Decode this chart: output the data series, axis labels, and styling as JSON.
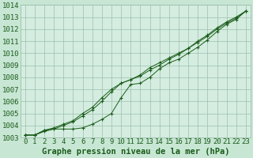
{
  "title": "Graphe pression niveau de la mer (hPa)",
  "background_color": "#c8e6d4",
  "plot_bg_color": "#d4ede0",
  "grid_color": "#9dbfac",
  "line_color": "#1a5c1a",
  "marker_color": "#1a5c1a",
  "x_values": [
    0,
    1,
    2,
    3,
    4,
    5,
    6,
    7,
    8,
    9,
    10,
    11,
    12,
    13,
    14,
    15,
    16,
    17,
    18,
    19,
    20,
    21,
    22,
    23
  ],
  "series1": [
    1003.2,
    1003.2,
    1003.5,
    1003.7,
    1003.7,
    1003.7,
    1003.8,
    1004.1,
    1004.5,
    1005.0,
    1006.3,
    1007.4,
    1007.5,
    1008.0,
    1008.7,
    1009.2,
    1009.5,
    1010.0,
    1010.5,
    1011.1,
    1011.8,
    1012.4,
    1012.8,
    1013.5
  ],
  "series2": [
    1003.2,
    1003.2,
    1003.6,
    1003.7,
    1004.0,
    1004.3,
    1004.8,
    1005.3,
    1006.0,
    1006.8,
    1007.5,
    1007.8,
    1008.2,
    1008.8,
    1009.2,
    1009.6,
    1010.0,
    1010.4,
    1011.0,
    1011.5,
    1012.1,
    1012.6,
    1013.0,
    1013.5
  ],
  "series3": [
    1003.2,
    1003.2,
    1003.6,
    1003.8,
    1004.1,
    1004.4,
    1005.0,
    1005.5,
    1006.3,
    1007.0,
    1007.5,
    1007.8,
    1008.1,
    1008.6,
    1009.0,
    1009.5,
    1009.9,
    1010.4,
    1010.9,
    1011.4,
    1012.0,
    1012.5,
    1012.9,
    1013.5
  ],
  "ylim": [
    1003.0,
    1014.0
  ],
  "xlim": [
    -0.5,
    23.5
  ],
  "ylabel_fontsize": 6.5,
  "xlabel_fontsize": 6.5,
  "title_fontsize": 7.5
}
